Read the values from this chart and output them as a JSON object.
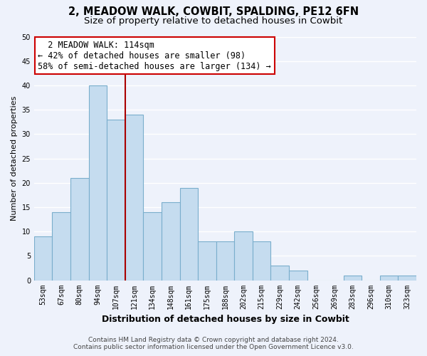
{
  "title": "2, MEADOW WALK, COWBIT, SPALDING, PE12 6FN",
  "subtitle": "Size of property relative to detached houses in Cowbit",
  "xlabel": "Distribution of detached houses by size in Cowbit",
  "ylabel": "Number of detached properties",
  "bin_labels": [
    "53sqm",
    "67sqm",
    "80sqm",
    "94sqm",
    "107sqm",
    "121sqm",
    "134sqm",
    "148sqm",
    "161sqm",
    "175sqm",
    "188sqm",
    "202sqm",
    "215sqm",
    "229sqm",
    "242sqm",
    "256sqm",
    "269sqm",
    "283sqm",
    "296sqm",
    "310sqm",
    "323sqm"
  ],
  "bar_values": [
    9,
    14,
    21,
    40,
    33,
    34,
    14,
    16,
    19,
    8,
    8,
    10,
    8,
    3,
    2,
    0,
    0,
    1,
    0,
    1,
    1
  ],
  "bar_color": "#c5dcef",
  "bar_edge_color": "#7aaecc",
  "highlight_line_color": "#aa0000",
  "ylim": [
    0,
    50
  ],
  "yticks": [
    0,
    5,
    10,
    15,
    20,
    25,
    30,
    35,
    40,
    45,
    50
  ],
  "annotation_title": "2 MEADOW WALK: 114sqm",
  "annotation_line1": "← 42% of detached houses are smaller (98)",
  "annotation_line2": "58% of semi-detached houses are larger (134) →",
  "annotation_box_color": "#ffffff",
  "annotation_box_edge": "#cc0000",
  "footer_line1": "Contains HM Land Registry data © Crown copyright and database right 2024.",
  "footer_line2": "Contains public sector information licensed under the Open Government Licence v3.0.",
  "background_color": "#eef2fb",
  "grid_color": "#ffffff",
  "title_fontsize": 10.5,
  "subtitle_fontsize": 9.5,
  "ylabel_fontsize": 8,
  "xlabel_fontsize": 9,
  "tick_fontsize": 7,
  "annotation_fontsize": 8.5,
  "footer_fontsize": 6.5
}
